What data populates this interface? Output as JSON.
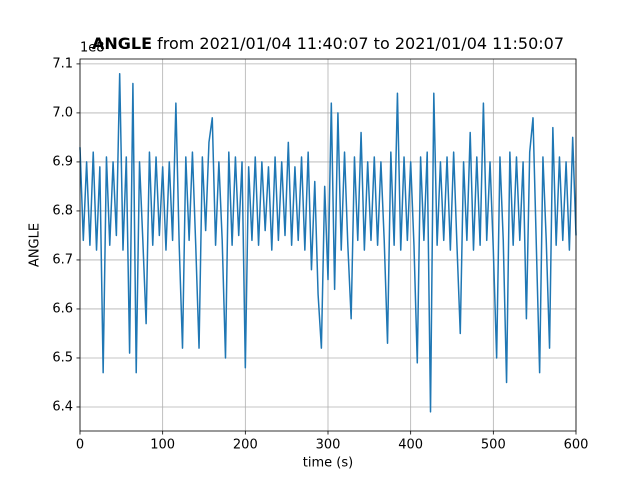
{
  "chart_data": {
    "type": "line",
    "title": "ANGLE",
    "subtitle": "from 2021/01/04 11:40:07 to 2021/01/04 11:50:07",
    "offset_label": "1e8",
    "xlabel": "time (s)",
    "ylabel": "ANGLE",
    "x": [
      0,
      4,
      8,
      12,
      16,
      20,
      24,
      28,
      32,
      36,
      40,
      44,
      48,
      52,
      56,
      60,
      64,
      68,
      72,
      76,
      80,
      84,
      88,
      92,
      96,
      100,
      104,
      108,
      112,
      116,
      120,
      124,
      128,
      132,
      136,
      140,
      144,
      148,
      152,
      156,
      160,
      164,
      168,
      172,
      176,
      180,
      184,
      188,
      192,
      196,
      200,
      204,
      208,
      212,
      216,
      220,
      224,
      228,
      232,
      236,
      240,
      244,
      248,
      252,
      256,
      260,
      264,
      268,
      272,
      276,
      280,
      284,
      288,
      292,
      296,
      300,
      304,
      308,
      312,
      316,
      320,
      324,
      328,
      332,
      336,
      340,
      344,
      348,
      352,
      356,
      360,
      364,
      368,
      372,
      376,
      380,
      384,
      388,
      392,
      396,
      400,
      404,
      408,
      412,
      416,
      420,
      424,
      428,
      432,
      436,
      440,
      444,
      448,
      452,
      456,
      460,
      464,
      468,
      472,
      476,
      480,
      484,
      488,
      492,
      496,
      500,
      504,
      508,
      512,
      516,
      520,
      524,
      528,
      532,
      536,
      540,
      544,
      548,
      552,
      556,
      560,
      564,
      568,
      572,
      576,
      580,
      584,
      588,
      592,
      596,
      600
    ],
    "series": [
      {
        "name": "ANGLE",
        "color": "#1f77b4",
        "values": [
          6.93,
          6.74,
          6.9,
          6.73,
          6.92,
          6.72,
          6.89,
          6.47,
          6.91,
          6.73,
          6.9,
          6.75,
          7.08,
          6.72,
          6.91,
          6.51,
          7.06,
          6.47,
          6.9,
          6.74,
          6.57,
          6.92,
          6.73,
          6.91,
          6.75,
          6.89,
          6.72,
          6.9,
          6.74,
          7.02,
          6.73,
          6.52,
          6.91,
          6.74,
          6.92,
          6.73,
          6.52,
          6.91,
          6.76,
          6.94,
          6.99,
          6.73,
          6.9,
          6.74,
          6.5,
          6.92,
          6.73,
          6.91,
          6.75,
          6.9,
          6.48,
          6.89,
          6.74,
          6.91,
          6.73,
          6.9,
          6.76,
          6.89,
          6.72,
          6.91,
          6.74,
          6.9,
          6.75,
          6.94,
          6.73,
          6.89,
          6.74,
          6.91,
          6.72,
          6.92,
          6.68,
          6.86,
          6.63,
          6.52,
          6.85,
          6.66,
          7.02,
          6.64,
          7.0,
          6.72,
          6.92,
          6.73,
          6.58,
          6.91,
          6.74,
          6.96,
          6.72,
          6.9,
          6.74,
          6.91,
          6.73,
          6.9,
          6.74,
          6.53,
          6.92,
          6.73,
          7.04,
          6.72,
          6.91,
          6.74,
          6.9,
          6.73,
          6.49,
          6.91,
          6.74,
          6.92,
          6.39,
          7.04,
          6.73,
          6.9,
          6.74,
          6.91,
          6.72,
          6.92,
          6.73,
          6.55,
          6.9,
          6.74,
          6.96,
          6.72,
          6.91,
          6.73,
          7.02,
          6.74,
          6.9,
          6.72,
          6.5,
          6.91,
          6.74,
          6.45,
          6.92,
          6.73,
          6.91,
          6.74,
          6.9,
          6.58,
          6.92,
          6.99,
          6.73,
          6.47,
          6.91,
          6.74,
          6.52,
          6.97,
          6.73,
          6.91,
          6.74,
          6.9,
          6.72,
          6.95,
          6.75
        ]
      }
    ],
    "xlim": [
      0,
      600
    ],
    "xticks": [
      0,
      100,
      200,
      300,
      400,
      500,
      600
    ],
    "ylim": [
      6.351,
      7.11
    ],
    "yticks": [
      6.4,
      6.5,
      6.6,
      6.7,
      6.8,
      6.9,
      {
        "value": 7,
        "label": "7.0"
      },
      7.1
    ],
    "grid": true
  }
}
